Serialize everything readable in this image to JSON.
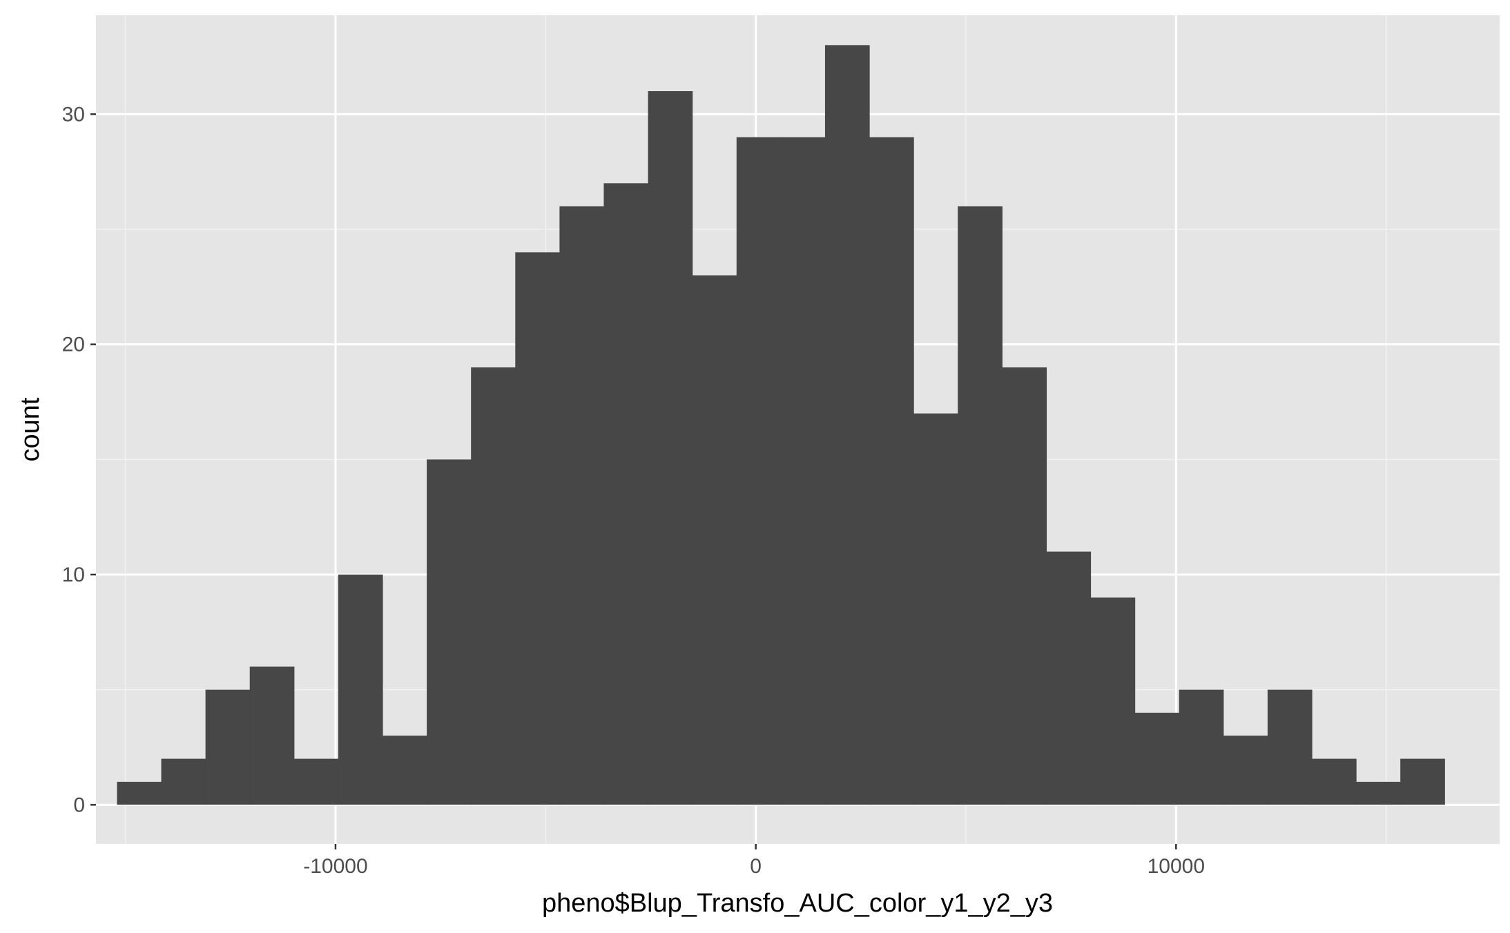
{
  "chart_data": {
    "type": "bar",
    "subtype": "histogram",
    "title": "",
    "xlabel": "pheno$Blup_Transfo_AUC_color_y1_y2_y3",
    "ylabel": "count",
    "grid": true,
    "background": "#e5e5e5",
    "bar_color": "#474747",
    "xlim": [
      -15700,
      17700
    ],
    "ylim": [
      -1.7,
      34.3
    ],
    "x_ticks": [
      -10000,
      0,
      10000
    ],
    "x_tick_labels": [
      "-10000",
      "0",
      "10000"
    ],
    "y_ticks": [
      0,
      10,
      20,
      30
    ],
    "y_tick_labels": [
      "0",
      "10",
      "20",
      "30"
    ],
    "bin_start": -15200,
    "bin_width": 1053,
    "values": [
      1,
      2,
      5,
      6,
      2,
      10,
      3,
      15,
      19,
      24,
      26,
      27,
      31,
      23,
      29,
      29,
      33,
      29,
      17,
      26,
      19,
      11,
      9,
      4,
      5,
      3,
      5,
      2,
      1,
      2
    ]
  }
}
